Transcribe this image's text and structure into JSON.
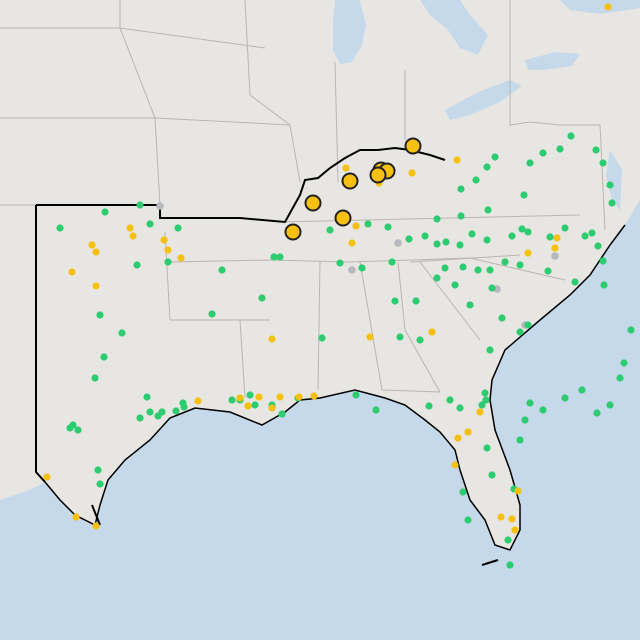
{
  "map": {
    "basemap": "light-gray-canvas",
    "colors": {
      "land": "#e8e6e2",
      "water": "#c5d9ea",
      "state_border": "#b9b6b2",
      "region_outline": "#000000",
      "status_green": "#2ecc71",
      "status_yellow": "#f5c010",
      "status_gray": "#b5b8bc",
      "large_marker_fill": "#f5c010",
      "large_marker_stroke": "#222222"
    },
    "legend_categories": [
      "green",
      "yellow",
      "gray"
    ],
    "large_marker_count": 8
  }
}
